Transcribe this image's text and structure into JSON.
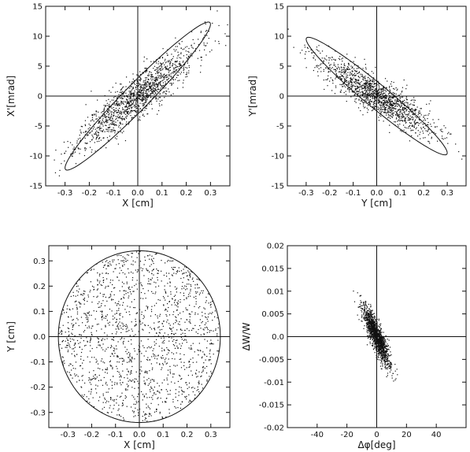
{
  "chart_data": [
    {
      "type": "scatter",
      "xlabel": "X [cm]",
      "ylabel": "X'[mrad]",
      "xlim": [
        -0.38,
        0.38
      ],
      "ylim": [
        -15,
        15
      ],
      "xticks": [
        -0.3,
        -0.2,
        -0.1,
        0.0,
        0.1,
        0.2,
        0.3
      ],
      "xtick_labels": [
        "-0.3",
        "-0.2",
        "-0.1",
        "0.0",
        "0.1",
        "0.2",
        "0.3"
      ],
      "yticks": [
        -15,
        -10,
        -5,
        0,
        5,
        10,
        15
      ],
      "ytick_labels": [
        "-15",
        "-10",
        "-5",
        "0",
        "5",
        "10",
        "15"
      ],
      "zero_lines": true,
      "points": {
        "count": 1400,
        "sx": 0.12,
        "sy": 4.2,
        "rho": 0.9,
        "seed": 11
      },
      "ellipse": {
        "cx": 0,
        "cy": 0,
        "ax": [
          0.3,
          12.0
        ],
        "ay": [
          0,
          -3.0
        ]
      }
    },
    {
      "type": "scatter",
      "xlabel": "Y [cm]",
      "ylabel": "Y'[mrad]",
      "xlim": [
        -0.38,
        0.38
      ],
      "ylim": [
        -15,
        15
      ],
      "xticks": [
        -0.3,
        -0.2,
        -0.1,
        0.0,
        0.1,
        0.2,
        0.3
      ],
      "xtick_labels": [
        "-0.3",
        "-0.2",
        "-0.1",
        "0.0",
        "0.1",
        "0.2",
        "0.3"
      ],
      "yticks": [
        -15,
        -10,
        -5,
        0,
        5,
        10,
        15
      ],
      "ytick_labels": [
        "-15",
        "-10",
        "-5",
        "0",
        "5",
        "10",
        "15"
      ],
      "zero_lines": true,
      "points": {
        "count": 1400,
        "sx": 0.12,
        "sy": 3.2,
        "rho": -0.88,
        "seed": 23
      },
      "ellipse": {
        "cx": 0,
        "cy": 0,
        "ax": [
          0.3,
          -9.5
        ],
        "ay": [
          0,
          2.5
        ]
      }
    },
    {
      "type": "scatter",
      "xlabel": "X [cm]",
      "ylabel": "Y [cm]",
      "xlim": [
        -0.38,
        0.38
      ],
      "ylim": [
        -0.36,
        0.36
      ],
      "xticks": [
        -0.3,
        -0.2,
        -0.1,
        0.0,
        0.1,
        0.2,
        0.3
      ],
      "xtick_labels": [
        "-0.3",
        "-0.2",
        "-0.1",
        "0.0",
        "0.1",
        "0.2",
        "0.3"
      ],
      "yticks": [
        -0.3,
        -0.2,
        -0.1,
        0.0,
        0.1,
        0.2,
        0.3
      ],
      "ytick_labels": [
        "-0.3",
        "-0.2",
        "-0.1",
        "0.0",
        "0.1",
        "0.2",
        "0.3"
      ],
      "zero_lines": true,
      "points": {
        "count": 1600,
        "uniform_disk": true,
        "r": 0.34,
        "seed": 37
      },
      "ellipse": {
        "cx": 0,
        "cy": 0,
        "ax": [
          0.34,
          0
        ],
        "ay": [
          0,
          0.34
        ]
      }
    },
    {
      "type": "scatter",
      "xlabel": "Δφ[deg]",
      "ylabel": "ΔW/W",
      "xlim": [
        -60,
        60
      ],
      "ylim": [
        -0.02,
        0.02
      ],
      "xticks": [
        -40,
        -20,
        0,
        20,
        40
      ],
      "xtick_labels": [
        "-40",
        "-20",
        "0",
        "20",
        "40"
      ],
      "yticks": [
        -0.02,
        -0.015,
        -0.01,
        -0.005,
        0.0,
        0.005,
        0.01,
        0.015,
        0.02
      ],
      "ytick_labels": [
        "-0.02",
        "-0.015",
        "-0.01",
        "-0.005",
        "0.0",
        "0.005",
        "0.01",
        "0.015",
        "0.02"
      ],
      "zero_lines": true,
      "points": {
        "count": 1500,
        "sx": 4.5,
        "sy": 0.0032,
        "rho": -0.86,
        "seed": 53
      },
      "ellipse": null
    }
  ]
}
